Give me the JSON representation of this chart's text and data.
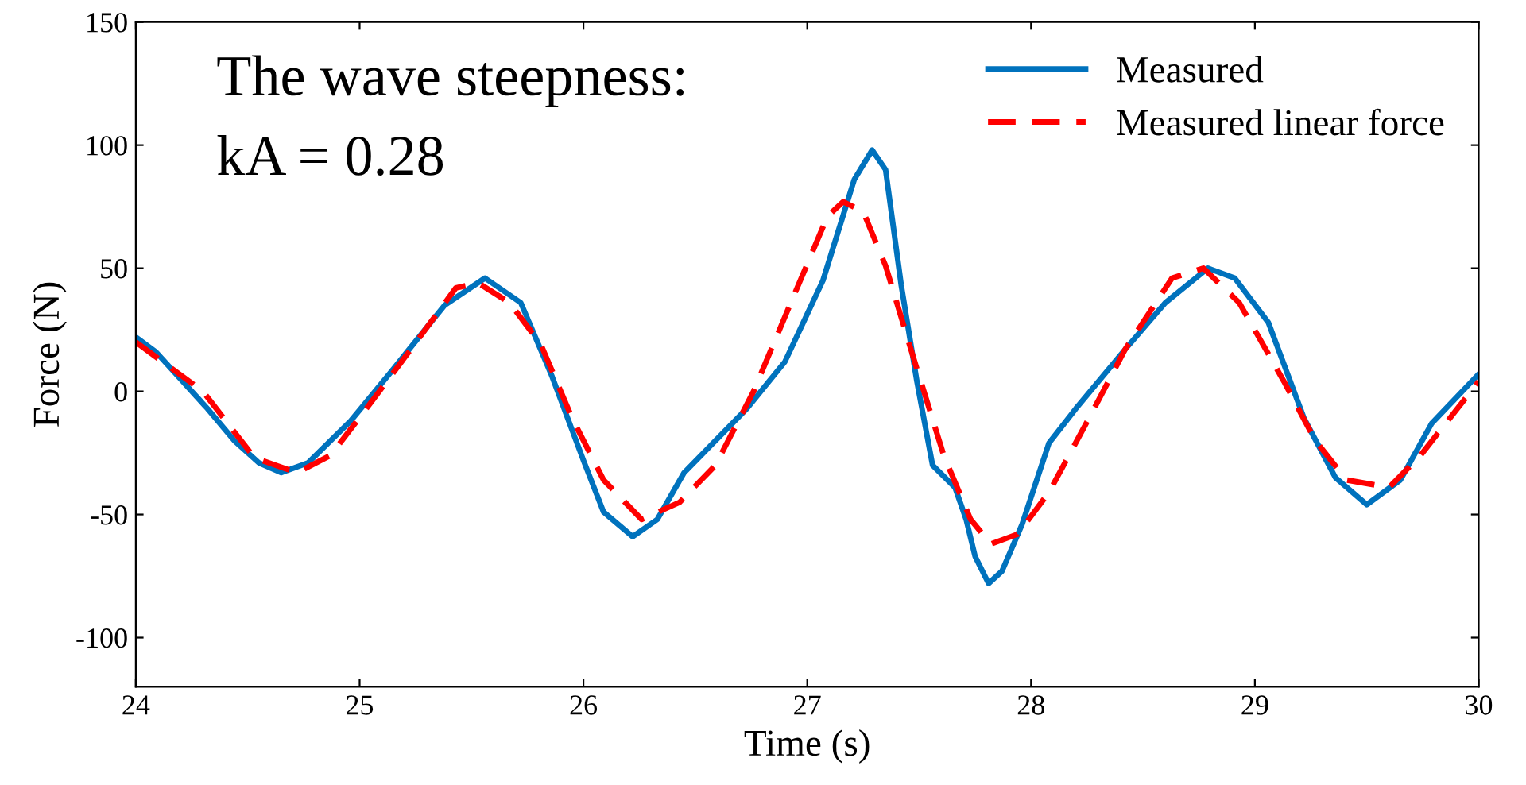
{
  "chart_data": {
    "type": "line",
    "xlabel": "Time (s)",
    "ylabel": "Force (N)",
    "xlim": [
      24,
      30
    ],
    "xticks": [
      24,
      25,
      26,
      27,
      28,
      29,
      30
    ],
    "ylim": [
      -120,
      150
    ],
    "yticks": [
      -100,
      -50,
      0,
      50,
      100,
      150
    ],
    "grid": false,
    "legend": "top right",
    "annotations": [
      "The wave steepness:",
      "kA = 0.28"
    ],
    "series": [
      {
        "name": "Measured",
        "color": "#0072bd",
        "line_style": "solid",
        "x": [
          24.0,
          24.09,
          24.32,
          24.44,
          24.55,
          24.65,
          24.77,
          24.96,
          25.15,
          25.38,
          25.56,
          25.72,
          25.86,
          26.0,
          26.09,
          26.22,
          26.33,
          26.45,
          26.73,
          26.9,
          27.07,
          27.21,
          27.29,
          27.35,
          27.42,
          27.49,
          27.56,
          27.66,
          27.71,
          27.75,
          27.81,
          27.87,
          27.96,
          28.08,
          28.2,
          28.42,
          28.6,
          28.79,
          28.91,
          29.06,
          29.22,
          29.36,
          29.5,
          29.65,
          29.79,
          30.0
        ],
        "values": [
          22,
          16,
          -7,
          -20,
          -29,
          -33,
          -29,
          -12,
          9,
          35,
          46,
          36,
          6,
          -28,
          -49,
          -59,
          -52,
          -33,
          -7,
          12,
          45,
          86,
          98,
          90,
          43,
          4,
          -30,
          -39,
          -52,
          -67,
          -78,
          -73,
          -54,
          -21,
          -7,
          17,
          36,
          50,
          46,
          28,
          -11,
          -35,
          -46,
          -36,
          -13,
          7
        ]
      },
      {
        "name": "Measured linear force",
        "color": "#ff0000",
        "line_style": "dashed",
        "x": [
          24.0,
          24.3,
          24.53,
          24.72,
          24.87,
          25.03,
          25.22,
          25.43,
          25.53,
          25.67,
          25.81,
          25.95,
          26.09,
          26.26,
          26.43,
          26.59,
          26.76,
          26.95,
          27.09,
          27.16,
          27.25,
          27.35,
          27.47,
          27.61,
          27.73,
          27.82,
          27.94,
          28.08,
          28.27,
          28.42,
          28.63,
          28.77,
          28.93,
          29.13,
          29.27,
          29.41,
          29.6,
          29.74,
          30.0
        ],
        "values": [
          20,
          0,
          -27,
          -33,
          -26,
          -7,
          16,
          42,
          44,
          36,
          19,
          -11,
          -36,
          -52,
          -45,
          -30,
          0,
          41,
          71,
          77,
          73,
          51,
          15,
          -26,
          -52,
          -62,
          -58,
          -41,
          -9,
          17,
          46,
          50,
          36,
          4,
          -20,
          -36,
          -39,
          -26,
          4
        ]
      }
    ]
  }
}
